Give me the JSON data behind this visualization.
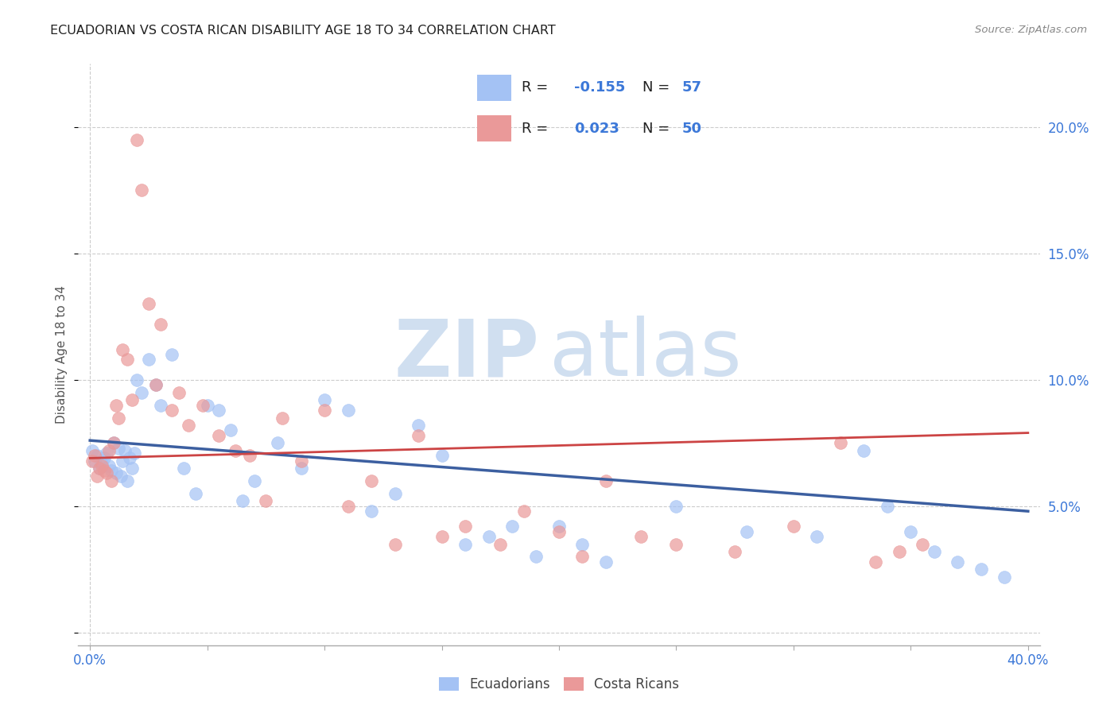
{
  "title": "ECUADORIAN VS COSTA RICAN DISABILITY AGE 18 TO 34 CORRELATION CHART",
  "source": "Source: ZipAtlas.com",
  "ylabel": "Disability Age 18 to 34",
  "xlim": [
    -0.005,
    0.405
  ],
  "ylim": [
    -0.005,
    0.225
  ],
  "xticks": [
    0.0,
    0.05,
    0.1,
    0.15,
    0.2,
    0.25,
    0.3,
    0.35,
    0.4
  ],
  "yticks": [
    0.0,
    0.05,
    0.1,
    0.15,
    0.2
  ],
  "color_blue": "#a4c2f4",
  "color_pink": "#ea9999",
  "color_blue_line": "#3c5fa0",
  "color_pink_line": "#cc4444",
  "color_blue_text": "#3c78d8",
  "color_grid": "#cccccc",
  "color_axis": "#aaaaaa",
  "watermark_zip": "ZIP",
  "watermark_atlas": "atlas",
  "watermark_color": "#d0dff0",
  "ecu_x": [
    0.001,
    0.002,
    0.003,
    0.004,
    0.005,
    0.006,
    0.007,
    0.008,
    0.009,
    0.01,
    0.011,
    0.012,
    0.013,
    0.014,
    0.015,
    0.016,
    0.017,
    0.018,
    0.019,
    0.02,
    0.022,
    0.025,
    0.028,
    0.03,
    0.035,
    0.04,
    0.045,
    0.05,
    0.055,
    0.06,
    0.065,
    0.07,
    0.08,
    0.09,
    0.1,
    0.11,
    0.12,
    0.13,
    0.14,
    0.15,
    0.16,
    0.17,
    0.18,
    0.19,
    0.2,
    0.21,
    0.22,
    0.25,
    0.28,
    0.31,
    0.33,
    0.34,
    0.35,
    0.36,
    0.37,
    0.38,
    0.39
  ],
  "ecu_y": [
    0.072,
    0.068,
    0.07,
    0.065,
    0.067,
    0.069,
    0.071,
    0.066,
    0.064,
    0.075,
    0.063,
    0.073,
    0.062,
    0.068,
    0.072,
    0.06,
    0.069,
    0.065,
    0.071,
    0.1,
    0.095,
    0.108,
    0.098,
    0.09,
    0.11,
    0.065,
    0.055,
    0.09,
    0.088,
    0.08,
    0.052,
    0.06,
    0.075,
    0.065,
    0.092,
    0.088,
    0.048,
    0.055,
    0.082,
    0.07,
    0.035,
    0.038,
    0.042,
    0.03,
    0.042,
    0.035,
    0.028,
    0.05,
    0.04,
    0.038,
    0.072,
    0.05,
    0.04,
    0.032,
    0.028,
    0.025,
    0.022
  ],
  "cr_x": [
    0.001,
    0.002,
    0.003,
    0.004,
    0.005,
    0.006,
    0.007,
    0.008,
    0.009,
    0.01,
    0.011,
    0.012,
    0.014,
    0.016,
    0.018,
    0.02,
    0.022,
    0.025,
    0.028,
    0.03,
    0.035,
    0.038,
    0.042,
    0.048,
    0.055,
    0.062,
    0.068,
    0.075,
    0.082,
    0.09,
    0.1,
    0.11,
    0.12,
    0.13,
    0.14,
    0.15,
    0.16,
    0.175,
    0.185,
    0.2,
    0.21,
    0.22,
    0.235,
    0.25,
    0.275,
    0.3,
    0.32,
    0.335,
    0.345,
    0.355
  ],
  "cr_y": [
    0.068,
    0.07,
    0.062,
    0.065,
    0.066,
    0.064,
    0.063,
    0.072,
    0.06,
    0.075,
    0.09,
    0.085,
    0.112,
    0.108,
    0.092,
    0.195,
    0.175,
    0.13,
    0.098,
    0.122,
    0.088,
    0.095,
    0.082,
    0.09,
    0.078,
    0.072,
    0.07,
    0.052,
    0.085,
    0.068,
    0.088,
    0.05,
    0.06,
    0.035,
    0.078,
    0.038,
    0.042,
    0.035,
    0.048,
    0.04,
    0.03,
    0.06,
    0.038,
    0.035,
    0.032,
    0.042,
    0.075,
    0.028,
    0.032,
    0.035
  ],
  "ecu_line_x": [
    0.0,
    0.4
  ],
  "ecu_line_y": [
    0.076,
    0.048
  ],
  "cr_line_x": [
    0.0,
    0.4
  ],
  "cr_line_y": [
    0.069,
    0.079
  ]
}
